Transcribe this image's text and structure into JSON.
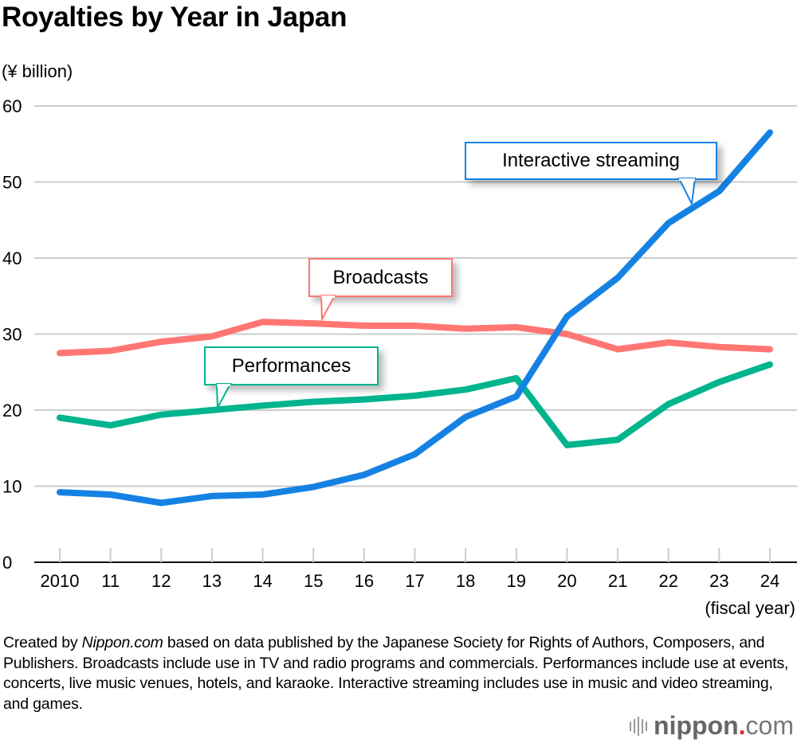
{
  "title": "Royalties by Year in Japan",
  "unit_label": "(¥ billion)",
  "chart_data": {
    "type": "line",
    "title": "Royalties by Year in Japan",
    "xlabel": "(fiscal year)",
    "ylabel": "(¥ billion)",
    "x": [
      "2010",
      "11",
      "12",
      "13",
      "14",
      "15",
      "16",
      "17",
      "18",
      "19",
      "20",
      "21",
      "22",
      "23",
      "24"
    ],
    "ylim": [
      0,
      60
    ],
    "yticks": [
      0,
      10,
      20,
      30,
      40,
      50,
      60
    ],
    "grid": true,
    "legend": "callouts",
    "series": [
      {
        "name": "Broadcasts",
        "color": "#ff7673",
        "values": [
          27.5,
          27.8,
          29.0,
          29.7,
          31.6,
          31.4,
          31.1,
          31.1,
          30.7,
          30.9,
          30.0,
          28.0,
          28.9,
          28.3,
          28.0
        ]
      },
      {
        "name": "Performances",
        "color": "#00b48e",
        "values": [
          19.0,
          18.0,
          19.4,
          20.0,
          20.6,
          21.1,
          21.4,
          21.9,
          22.7,
          24.2,
          15.4,
          16.1,
          20.8,
          23.7,
          26.0
        ]
      },
      {
        "name": "Interactive streaming",
        "color": "#1582e3",
        "values": [
          9.2,
          8.9,
          7.8,
          8.7,
          8.9,
          9.9,
          11.5,
          14.2,
          19.1,
          21.8,
          32.3,
          37.4,
          44.6,
          48.8,
          56.5
        ]
      }
    ]
  },
  "callouts": {
    "broadcasts": "Broadcasts",
    "performances": "Performances",
    "streaming": "Interactive streaming"
  },
  "footer": {
    "prefix": "Created by ",
    "source_name": "Nippon.com",
    "text": " based on data published by the Japanese Society for Rights of Authors, Composers, and Publishers. Broadcasts include use in TV and radio programs and commercials. Performances include use at events, concerts, live music venues, hotels, and karaoke. Interactive streaming includes use in music and video streaming, and games."
  },
  "logo": {
    "name": "nippon",
    "dot": ".",
    "suffix": "com",
    "accent_color": "#e0262a"
  }
}
